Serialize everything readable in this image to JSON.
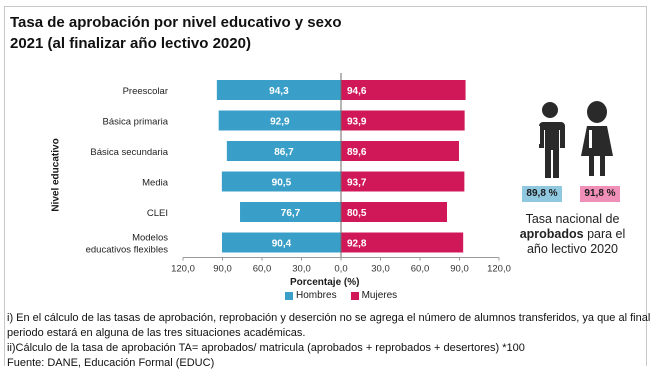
{
  "title_line1": "Tasa de aprobación por nivel educativo y sexo",
  "title_line2": "2021 (al finalizar año lectivo 2020)",
  "chart_data": {
    "type": "bar",
    "orientation": "horizontal-diverging",
    "categories": [
      "Preescolar",
      "Básica primaria",
      "Básica secundaria",
      "Media",
      "CLEI",
      "Modelos educativos flexibles"
    ],
    "series": [
      {
        "name": "Hombres",
        "values": [
          94.3,
          92.9,
          86.7,
          90.5,
          76.7,
          90.4
        ],
        "color": "#3a9fc8",
        "labels": [
          "94,3",
          "92,9",
          "86,7",
          "90,5",
          "76,7",
          "90,4"
        ]
      },
      {
        "name": "Mujeres",
        "values": [
          94.6,
          93.9,
          89.6,
          93.7,
          80.5,
          92.8
        ],
        "color": "#d01858",
        "labels": [
          "94,6",
          "93,9",
          "89,6",
          "93,7",
          "80,5",
          "92,8"
        ]
      }
    ],
    "xlabel": "Porcentaje (%)",
    "ylabel": "Nivel educativo",
    "xlim": [
      -120,
      120
    ],
    "ticks": [
      "120,0",
      "90,0",
      "60,0",
      "30,0",
      "0,0",
      "30,0",
      "60,0",
      "90,0",
      "120,0"
    ],
    "grid": false,
    "legend": "bottom"
  },
  "national": {
    "hombres_pct": "89,8 %",
    "mujeres_pct": "91,8 %",
    "text_line1": "Tasa nacional de",
    "text_bold": "aprobados",
    "text_after_bold": " para el",
    "text_line3": "año lectivo 2020"
  },
  "notes": {
    "line1": "i) En el cálculo de las tasas de aprobación, reprobación y deserción no se agrega el número de alumnos transferidos, ya que al final del",
    "line2": "periodo estará en alguna de las tres situaciones académicas.",
    "line3": "ii)Cálculo de la tasa de aprobación TA= aprobados/ matricula (aprobados + reprobados + desertores) *100",
    "line4": "Fuente: DANE, Educación Formal (EDUC)"
  },
  "colors": {
    "hombres": "#3a9fc8",
    "mujeres": "#d01858",
    "national_h_bg": "#90c8e0",
    "national_m_bg": "#f090b8",
    "figure": "#2a2a2a"
  }
}
